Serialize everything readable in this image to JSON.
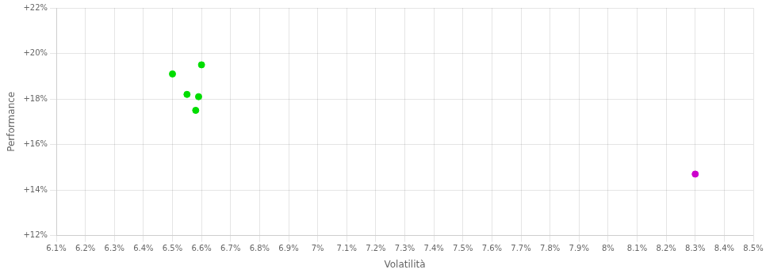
{
  "chart_data": {
    "type": "scatter",
    "xlabel": "Volatilità",
    "ylabel": "Performance",
    "series": [
      {
        "color": "#00dd00",
        "x": [
          0.065,
          0.066,
          0.0655,
          0.0659,
          0.0658
        ],
        "values": [
          0.191,
          0.195,
          0.182,
          0.181,
          0.175
        ]
      },
      {
        "color": "#cc00cc",
        "x": [
          0.083
        ],
        "values": [
          0.147
        ]
      }
    ],
    "xlim": [
      0.061,
      0.085
    ],
    "ylim": [
      0.12,
      0.22
    ],
    "xticks": [
      {
        "value": 0.061,
        "label": "6.1%"
      },
      {
        "value": 0.062,
        "label": "6.2%"
      },
      {
        "value": 0.063,
        "label": "6.3%"
      },
      {
        "value": 0.064,
        "label": "6.4%"
      },
      {
        "value": 0.065,
        "label": "6.5%"
      },
      {
        "value": 0.066,
        "label": "6.6%"
      },
      {
        "value": 0.067,
        "label": "6.7%"
      },
      {
        "value": 0.068,
        "label": "6.8%"
      },
      {
        "value": 0.069,
        "label": "6.9%"
      },
      {
        "value": 0.07,
        "label": "7%"
      },
      {
        "value": 0.071,
        "label": "7.1%"
      },
      {
        "value": 0.072,
        "label": "7.2%"
      },
      {
        "value": 0.073,
        "label": "7.3%"
      },
      {
        "value": 0.074,
        "label": "7.4%"
      },
      {
        "value": 0.075,
        "label": "7.5%"
      },
      {
        "value": 0.076,
        "label": "7.6%"
      },
      {
        "value": 0.077,
        "label": "7.7%"
      },
      {
        "value": 0.078,
        "label": "7.8%"
      },
      {
        "value": 0.079,
        "label": "7.9%"
      },
      {
        "value": 0.08,
        "label": "8%"
      },
      {
        "value": 0.081,
        "label": "8.1%"
      },
      {
        "value": 0.082,
        "label": "8.2%"
      },
      {
        "value": 0.083,
        "label": "8.3%"
      },
      {
        "value": 0.084,
        "label": "8.4%"
      },
      {
        "value": 0.085,
        "label": "8.5%"
      }
    ],
    "yticks": [
      {
        "value": 0.12,
        "label": "+12%"
      },
      {
        "value": 0.14,
        "label": "+14%"
      },
      {
        "value": 0.16,
        "label": "+16%"
      },
      {
        "value": 0.18,
        "label": "+18%"
      },
      {
        "value": 0.2,
        "label": "+20%"
      },
      {
        "value": 0.22,
        "label": "+22%"
      }
    ],
    "grid": true
  }
}
